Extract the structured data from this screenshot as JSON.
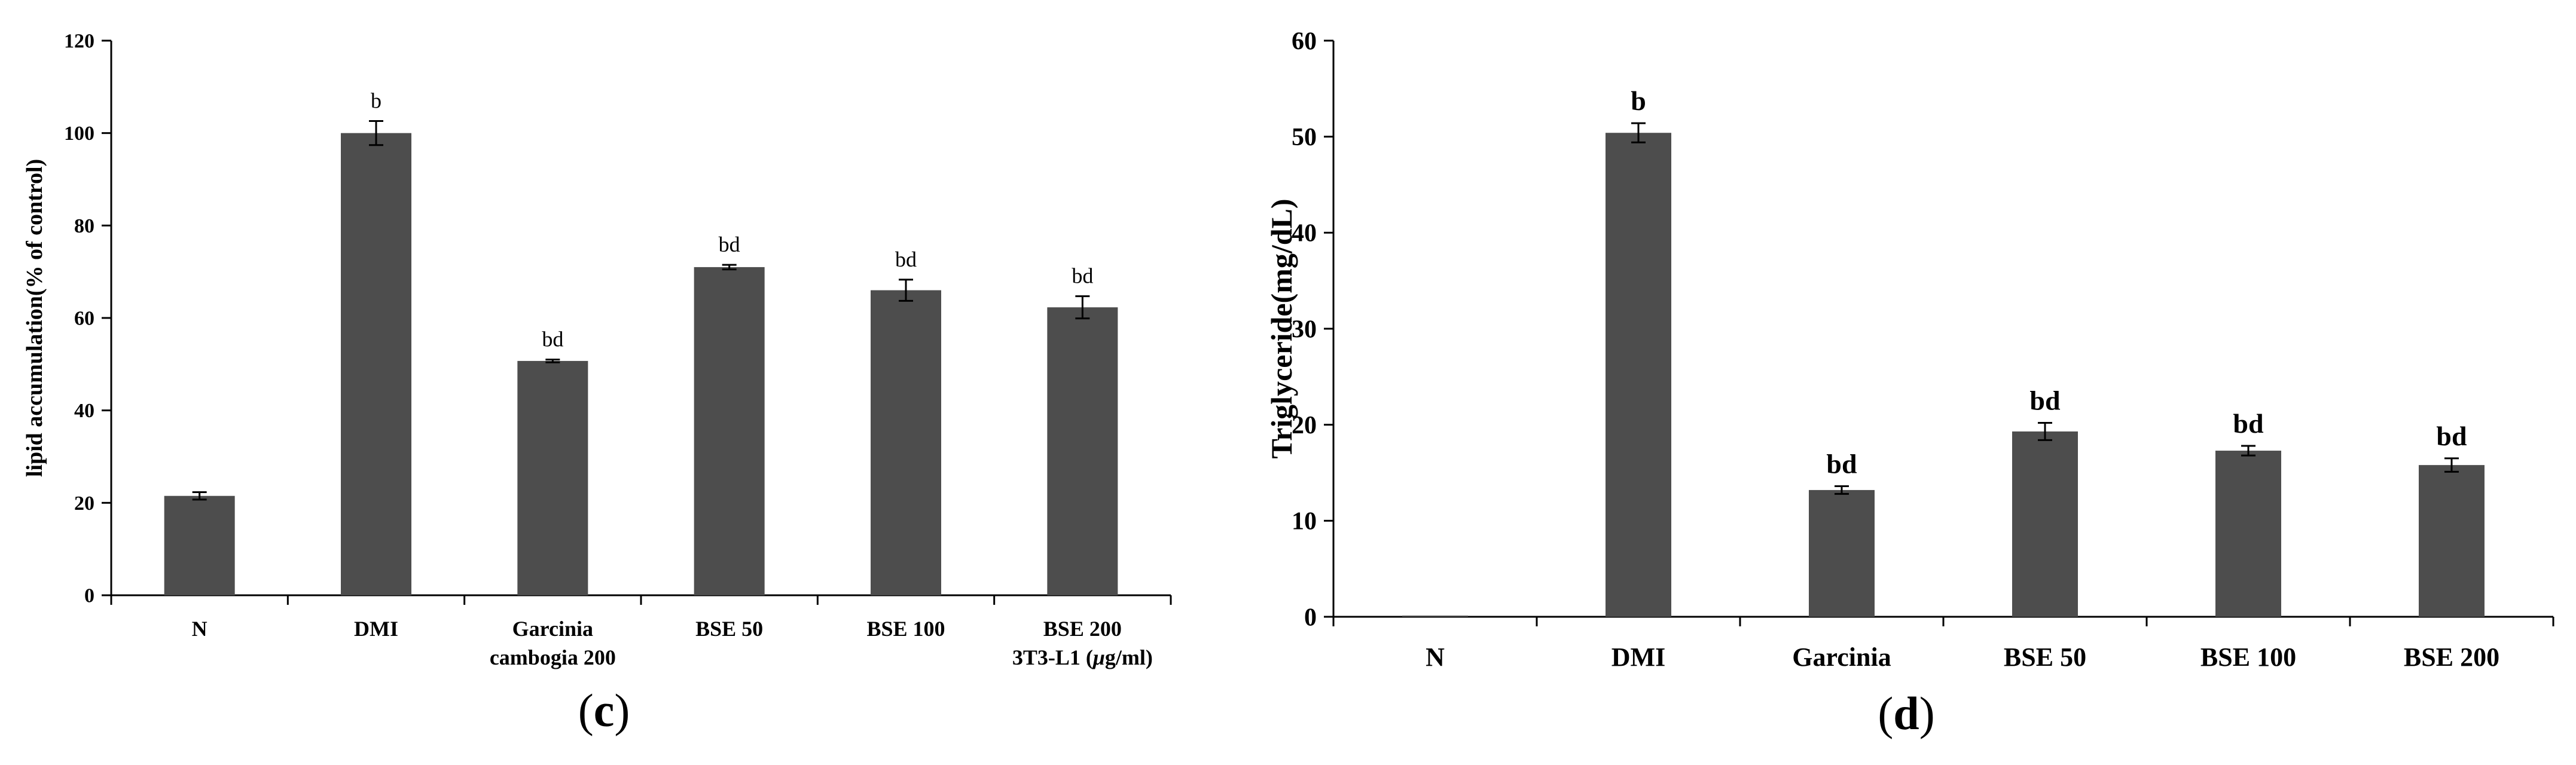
{
  "chart_data": [
    {
      "type": "bar",
      "panel_label_open": "(",
      "panel_label_letter": "c",
      "panel_label_close": ")",
      "ylabel": "lipid accumulation(% of control)",
      "xlabel": "",
      "ylim": [
        0,
        120
      ],
      "ytick_labels": [
        "0",
        "20",
        "40",
        "60",
        "80",
        "100",
        "120"
      ],
      "yticks": [
        0,
        20,
        40,
        60,
        80,
        100,
        120
      ],
      "categories": [
        "N",
        "DMI",
        "Garcinia cambogia 200",
        "BSE 50",
        "BSE 100",
        "BSE 200"
      ],
      "category_lines": [
        [
          "N"
        ],
        [
          "DMI"
        ],
        [
          "Garcinia",
          "cambogia 200"
        ],
        [
          "BSE 50"
        ],
        [
          "BSE 100"
        ],
        [
          "BSE 200"
        ]
      ],
      "axis_note_prefix": "3T3-L1 (",
      "axis_note_mu": "μ",
      "axis_note_suffix": "g/ml)",
      "values": [
        21.5,
        100,
        50.7,
        71,
        66,
        62.3
      ],
      "errors": [
        0.8,
        2.6,
        0.3,
        0.5,
        2.3,
        2.4
      ],
      "sig_labels": [
        "",
        "b",
        "bd",
        "bd",
        "bd",
        "bd"
      ],
      "bar_color": "#4d4d4d"
    },
    {
      "type": "bar",
      "panel_label_open": "(",
      "panel_label_letter": "d",
      "panel_label_close": ")",
      "ylabel": "Triglyceride(mg/dL)",
      "xlabel": "",
      "ylim": [
        0,
        60
      ],
      "ytick_labels": [
        "0",
        "10",
        "20",
        "30",
        "40",
        "50",
        "60"
      ],
      "yticks": [
        0,
        10,
        20,
        30,
        40,
        50,
        60
      ],
      "categories": [
        "N",
        "DMI",
        "Garcinia",
        "BSE 50",
        "BSE 100",
        "BSE 200"
      ],
      "values": [
        0,
        50.4,
        13.2,
        19.3,
        17.3,
        15.8
      ],
      "errors": [
        0,
        1.0,
        0.4,
        0.9,
        0.5,
        0.7
      ],
      "sig_labels": [
        "",
        "b",
        "bd",
        "bd",
        "bd",
        "bd"
      ],
      "bar_color": "#4d4d4d"
    }
  ]
}
